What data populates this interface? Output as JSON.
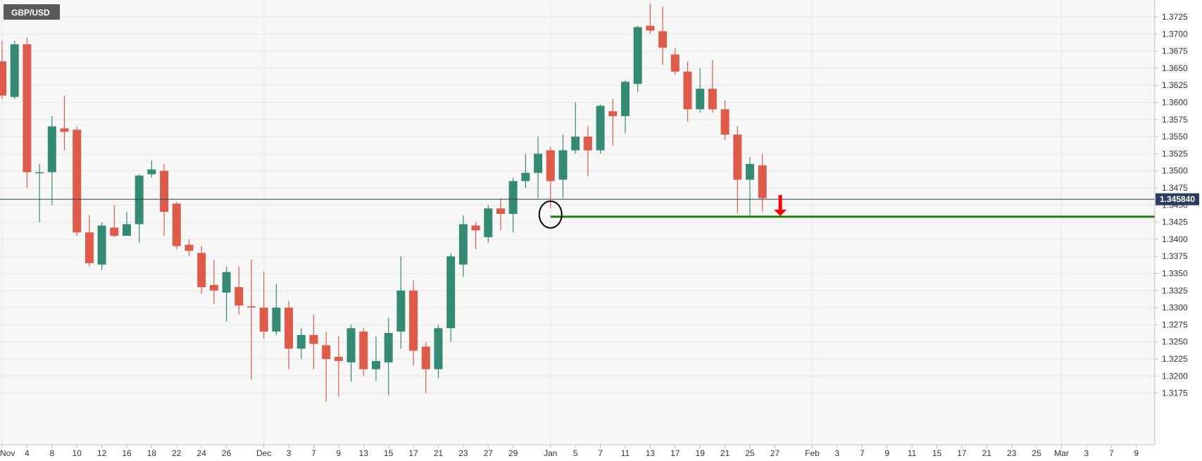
{
  "chart_data": {
    "type": "candlestick",
    "symbol": "GBP/USD",
    "current_price": "1.345840",
    "ylim": [
      1.3155,
      1.3745
    ],
    "y_ticks": [
      "1.3175",
      "1.3200",
      "1.3225",
      "1.3250",
      "1.3275",
      "1.3300",
      "1.3325",
      "1.3350",
      "1.3375",
      "1.3400",
      "1.3425",
      "1.3450",
      "1.3475",
      "1.3500",
      "1.3525",
      "1.3550",
      "1.3575",
      "1.3600",
      "1.3625",
      "1.3650",
      "1.3675",
      "1.3700",
      "1.3725"
    ],
    "x_ticks": [
      {
        "label": "Nov",
        "i": 0
      },
      {
        "label": "4",
        "i": 2
      },
      {
        "label": "8",
        "i": 4
      },
      {
        "label": "10",
        "i": 6
      },
      {
        "label": "12",
        "i": 8
      },
      {
        "label": "16",
        "i": 10
      },
      {
        "label": "18",
        "i": 12
      },
      {
        "label": "22",
        "i": 14
      },
      {
        "label": "24",
        "i": 16
      },
      {
        "label": "26",
        "i": 18
      },
      {
        "label": "Dec",
        "i": 21
      },
      {
        "label": "3",
        "i": 23
      },
      {
        "label": "7",
        "i": 25
      },
      {
        "label": "9",
        "i": 27
      },
      {
        "label": "13",
        "i": 29
      },
      {
        "label": "15",
        "i": 31
      },
      {
        "label": "17",
        "i": 33
      },
      {
        "label": "21",
        "i": 35
      },
      {
        "label": "23",
        "i": 37
      },
      {
        "label": "27",
        "i": 39
      },
      {
        "label": "29",
        "i": 41
      },
      {
        "label": "Jan",
        "i": 44
      },
      {
        "label": "5",
        "i": 46
      },
      {
        "label": "7",
        "i": 48
      },
      {
        "label": "11",
        "i": 50
      },
      {
        "label": "13",
        "i": 52
      },
      {
        "label": "17",
        "i": 54
      },
      {
        "label": "19",
        "i": 56
      },
      {
        "label": "21",
        "i": 58
      },
      {
        "label": "25",
        "i": 60
      },
      {
        "label": "27",
        "i": 62
      },
      {
        "label": "Feb",
        "i": 65
      },
      {
        "label": "3",
        "i": 67
      },
      {
        "label": "7",
        "i": 69
      },
      {
        "label": "9",
        "i": 71
      },
      {
        "label": "11",
        "i": 73
      },
      {
        "label": "15",
        "i": 75
      },
      {
        "label": "17",
        "i": 77
      },
      {
        "label": "21",
        "i": 79
      },
      {
        "label": "23",
        "i": 81
      },
      {
        "label": "25",
        "i": 83
      },
      {
        "label": "Mar",
        "i": 85
      },
      {
        "label": "3",
        "i": 87
      },
      {
        "label": "7",
        "i": 89
      },
      {
        "label": "9",
        "i": 91
      }
    ],
    "candles": [
      {
        "i": 0,
        "o": 1.366,
        "h": 1.369,
        "l": 1.3605,
        "c": 1.361
      },
      {
        "i": 1,
        "o": 1.3608,
        "h": 1.369,
        "l": 1.3605,
        "c": 1.3685
      },
      {
        "i": 2,
        "o": 1.3685,
        "h": 1.3695,
        "l": 1.3475,
        "c": 1.3498
      },
      {
        "i": 3,
        "o": 1.3497,
        "h": 1.351,
        "l": 1.3425,
        "c": 1.3498
      },
      {
        "i": 4,
        "o": 1.3498,
        "h": 1.358,
        "l": 1.345,
        "c": 1.3565
      },
      {
        "i": 5,
        "o": 1.3562,
        "h": 1.361,
        "l": 1.353,
        "c": 1.3557
      },
      {
        "i": 6,
        "o": 1.356,
        "h": 1.3565,
        "l": 1.3405,
        "c": 1.341
      },
      {
        "i": 7,
        "o": 1.341,
        "h": 1.3435,
        "l": 1.336,
        "c": 1.3365
      },
      {
        "i": 8,
        "o": 1.3363,
        "h": 1.3425,
        "l": 1.3355,
        "c": 1.342
      },
      {
        "i": 9,
        "o": 1.3417,
        "h": 1.345,
        "l": 1.3403,
        "c": 1.3405
      },
      {
        "i": 10,
        "o": 1.3405,
        "h": 1.344,
        "l": 1.3405,
        "c": 1.3422
      },
      {
        "i": 11,
        "o": 1.3422,
        "h": 1.3495,
        "l": 1.3395,
        "c": 1.3493
      },
      {
        "i": 12,
        "o": 1.3495,
        "h": 1.3515,
        "l": 1.349,
        "c": 1.3502
      },
      {
        "i": 13,
        "o": 1.35,
        "h": 1.351,
        "l": 1.3405,
        "c": 1.344
      },
      {
        "i": 14,
        "o": 1.3452,
        "h": 1.3455,
        "l": 1.3385,
        "c": 1.339
      },
      {
        "i": 15,
        "o": 1.3392,
        "h": 1.34,
        "l": 1.3375,
        "c": 1.3383
      },
      {
        "i": 16,
        "o": 1.338,
        "h": 1.339,
        "l": 1.332,
        "c": 1.333
      },
      {
        "i": 17,
        "o": 1.3333,
        "h": 1.337,
        "l": 1.3305,
        "c": 1.3325
      },
      {
        "i": 18,
        "o": 1.3322,
        "h": 1.336,
        "l": 1.328,
        "c": 1.3352
      },
      {
        "i": 19,
        "o": 1.333,
        "h": 1.336,
        "l": 1.329,
        "c": 1.3303
      },
      {
        "i": 20,
        "o": 1.3302,
        "h": 1.337,
        "l": 1.3195,
        "c": 1.3301
      },
      {
        "i": 21,
        "o": 1.33,
        "h": 1.3352,
        "l": 1.3255,
        "c": 1.3265
      },
      {
        "i": 22,
        "o": 1.3265,
        "h": 1.3335,
        "l": 1.326,
        "c": 1.33
      },
      {
        "i": 23,
        "o": 1.33,
        "h": 1.331,
        "l": 1.321,
        "c": 1.324
      },
      {
        "i": 24,
        "o": 1.324,
        "h": 1.327,
        "l": 1.3225,
        "c": 1.326
      },
      {
        "i": 25,
        "o": 1.326,
        "h": 1.329,
        "l": 1.321,
        "c": 1.3247
      },
      {
        "i": 26,
        "o": 1.3245,
        "h": 1.3265,
        "l": 1.3162,
        "c": 1.3225
      },
      {
        "i": 27,
        "o": 1.3228,
        "h": 1.3258,
        "l": 1.317,
        "c": 1.3222
      },
      {
        "i": 28,
        "o": 1.322,
        "h": 1.3275,
        "l": 1.3192,
        "c": 1.327
      },
      {
        "i": 29,
        "o": 1.3265,
        "h": 1.327,
        "l": 1.32,
        "c": 1.321
      },
      {
        "i": 30,
        "o": 1.321,
        "h": 1.3258,
        "l": 1.3193,
        "c": 1.3222
      },
      {
        "i": 31,
        "o": 1.322,
        "h": 1.3285,
        "l": 1.3172,
        "c": 1.3263
      },
      {
        "i": 32,
        "o": 1.3265,
        "h": 1.3375,
        "l": 1.324,
        "c": 1.3325
      },
      {
        "i": 33,
        "o": 1.3325,
        "h": 1.334,
        "l": 1.3215,
        "c": 1.3237
      },
      {
        "i": 34,
        "o": 1.3243,
        "h": 1.325,
        "l": 1.3175,
        "c": 1.321
      },
      {
        "i": 35,
        "o": 1.321,
        "h": 1.3275,
        "l": 1.3197,
        "c": 1.327
      },
      {
        "i": 36,
        "o": 1.327,
        "h": 1.338,
        "l": 1.325,
        "c": 1.3375
      },
      {
        "i": 37,
        "o": 1.3363,
        "h": 1.3435,
        "l": 1.3345,
        "c": 1.3422
      },
      {
        "i": 38,
        "o": 1.342,
        "h": 1.3425,
        "l": 1.3385,
        "c": 1.3413
      },
      {
        "i": 39,
        "o": 1.3403,
        "h": 1.345,
        "l": 1.3395,
        "c": 1.3445
      },
      {
        "i": 40,
        "o": 1.3445,
        "h": 1.346,
        "l": 1.3413,
        "c": 1.3437
      },
      {
        "i": 41,
        "o": 1.3437,
        "h": 1.349,
        "l": 1.341,
        "c": 1.3485
      },
      {
        "i": 42,
        "o": 1.3485,
        "h": 1.3525,
        "l": 1.3475,
        "c": 1.3497
      },
      {
        "i": 43,
        "o": 1.3497,
        "h": 1.355,
        "l": 1.346,
        "c": 1.3525
      },
      {
        "i": 44,
        "o": 1.353,
        "h": 1.3535,
        "l": 1.3445,
        "c": 1.3485
      },
      {
        "i": 45,
        "o": 1.3487,
        "h": 1.3553,
        "l": 1.346,
        "c": 1.353
      },
      {
        "i": 46,
        "o": 1.353,
        "h": 1.36,
        "l": 1.3525,
        "c": 1.355
      },
      {
        "i": 47,
        "o": 1.355,
        "h": 1.3565,
        "l": 1.3492,
        "c": 1.353
      },
      {
        "i": 48,
        "o": 1.353,
        "h": 1.3597,
        "l": 1.3525,
        "c": 1.3595
      },
      {
        "i": 49,
        "o": 1.3587,
        "h": 1.3605,
        "l": 1.3537,
        "c": 1.358
      },
      {
        "i": 50,
        "o": 1.358,
        "h": 1.3632,
        "l": 1.3555,
        "c": 1.363
      },
      {
        "i": 51,
        "o": 1.3627,
        "h": 1.3712,
        "l": 1.3615,
        "c": 1.371
      },
      {
        "i": 52,
        "o": 1.3712,
        "h": 1.3745,
        "l": 1.37,
        "c": 1.3705
      },
      {
        "i": 53,
        "o": 1.3704,
        "h": 1.374,
        "l": 1.3655,
        "c": 1.368
      },
      {
        "i": 54,
        "o": 1.367,
        "h": 1.368,
        "l": 1.364,
        "c": 1.3645
      },
      {
        "i": 55,
        "o": 1.3645,
        "h": 1.366,
        "l": 1.3572,
        "c": 1.359
      },
      {
        "i": 56,
        "o": 1.359,
        "h": 1.365,
        "l": 1.3585,
        "c": 1.362
      },
      {
        "i": 57,
        "o": 1.362,
        "h": 1.3662,
        "l": 1.3585,
        "c": 1.359
      },
      {
        "i": 58,
        "o": 1.359,
        "h": 1.3603,
        "l": 1.3545,
        "c": 1.3553
      },
      {
        "i": 59,
        "o": 1.3553,
        "h": 1.3565,
        "l": 1.3438,
        "c": 1.3487
      },
      {
        "i": 60,
        "o": 1.3487,
        "h": 1.352,
        "l": 1.3435,
        "c": 1.351
      },
      {
        "i": 61,
        "o": 1.3508,
        "h": 1.3525,
        "l": 1.344,
        "c": 1.346
      }
    ],
    "support_level": 1.3433,
    "colors": {
      "bull": "#358a74",
      "bear": "#de5b49",
      "support_line": "#1e7d0c",
      "arrow": "#ff0000",
      "price_line": "#2a3d5c",
      "price_label_bg": "#2a3d5c",
      "symbol_bg": "#5a5a5a",
      "grid": "#e6e6e6",
      "plot_bg": "#f7f7f7"
    }
  }
}
